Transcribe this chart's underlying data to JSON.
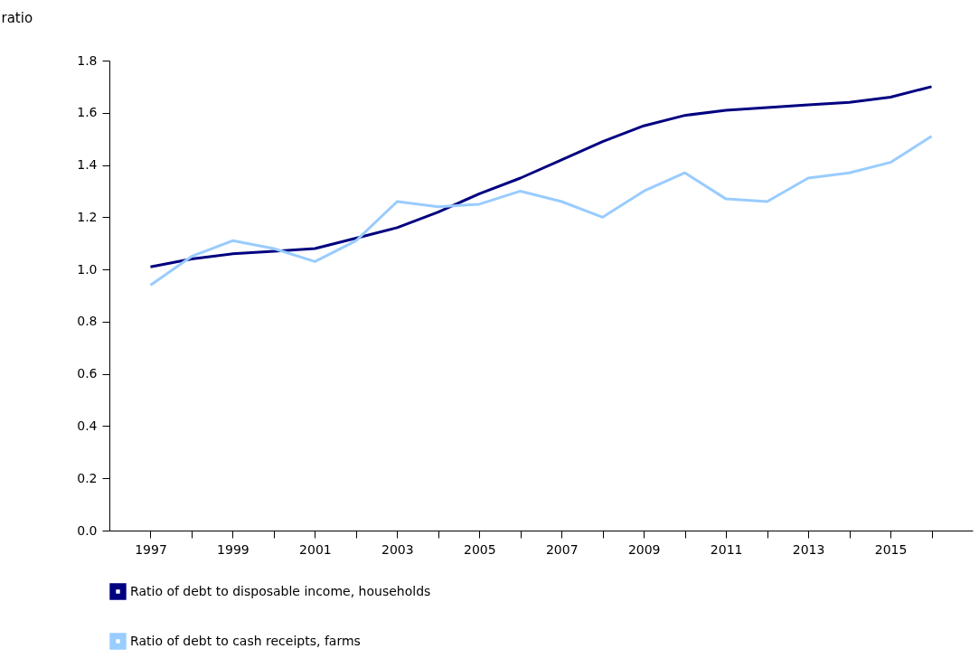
{
  "chart_data": {
    "type": "line",
    "ylabel": "ratio",
    "x": [
      1997,
      1998,
      1999,
      2000,
      2001,
      2002,
      2003,
      2004,
      2005,
      2006,
      2007,
      2008,
      2009,
      2010,
      2011,
      2012,
      2013,
      2014,
      2015,
      2016
    ],
    "series": [
      {
        "name": "Ratio of debt to disposable income, households",
        "color": "#000080",
        "values": [
          1.01,
          1.04,
          1.06,
          1.07,
          1.08,
          1.12,
          1.16,
          1.22,
          1.29,
          1.35,
          1.42,
          1.49,
          1.55,
          1.59,
          1.61,
          1.62,
          1.63,
          1.64,
          1.66,
          1.7
        ]
      },
      {
        "name": "Ratio of debt to cash receipts, farms",
        "color": "#99ccff",
        "values": [
          0.94,
          1.05,
          1.11,
          1.08,
          1.03,
          1.11,
          1.26,
          1.24,
          1.25,
          1.3,
          1.26,
          1.2,
          1.3,
          1.37,
          1.27,
          1.26,
          1.35,
          1.37,
          1.41,
          1.51
        ]
      }
    ],
    "xlim": [
      1996,
      2017
    ],
    "xticks": [
      1997,
      {
        "value": 1998,
        "label": null
      },
      1999,
      {
        "value": 2000,
        "label": null
      },
      2001,
      {
        "value": 2002,
        "label": null
      },
      2003,
      {
        "value": 2004,
        "label": null
      },
      2005,
      {
        "value": 2006,
        "label": null
      },
      2007,
      {
        "value": 2008,
        "label": null
      },
      2009,
      {
        "value": 2010,
        "label": null
      },
      2011,
      {
        "value": 2012,
        "label": null
      },
      2013,
      {
        "value": 2014,
        "label": null
      },
      2015,
      {
        "value": 2016,
        "label": null
      }
    ],
    "ylim": [
      0,
      1.8
    ],
    "yticks": [
      {
        "value": 0,
        "label": "0.0"
      },
      0.2,
      0.4,
      0.6,
      0.8,
      {
        "value": 1,
        "label": "1.0"
      },
      1.2,
      1.4,
      1.6,
      1.8
    ],
    "grid": false,
    "legend": "bottom",
    "line_style": "solid",
    "marker": "none"
  }
}
